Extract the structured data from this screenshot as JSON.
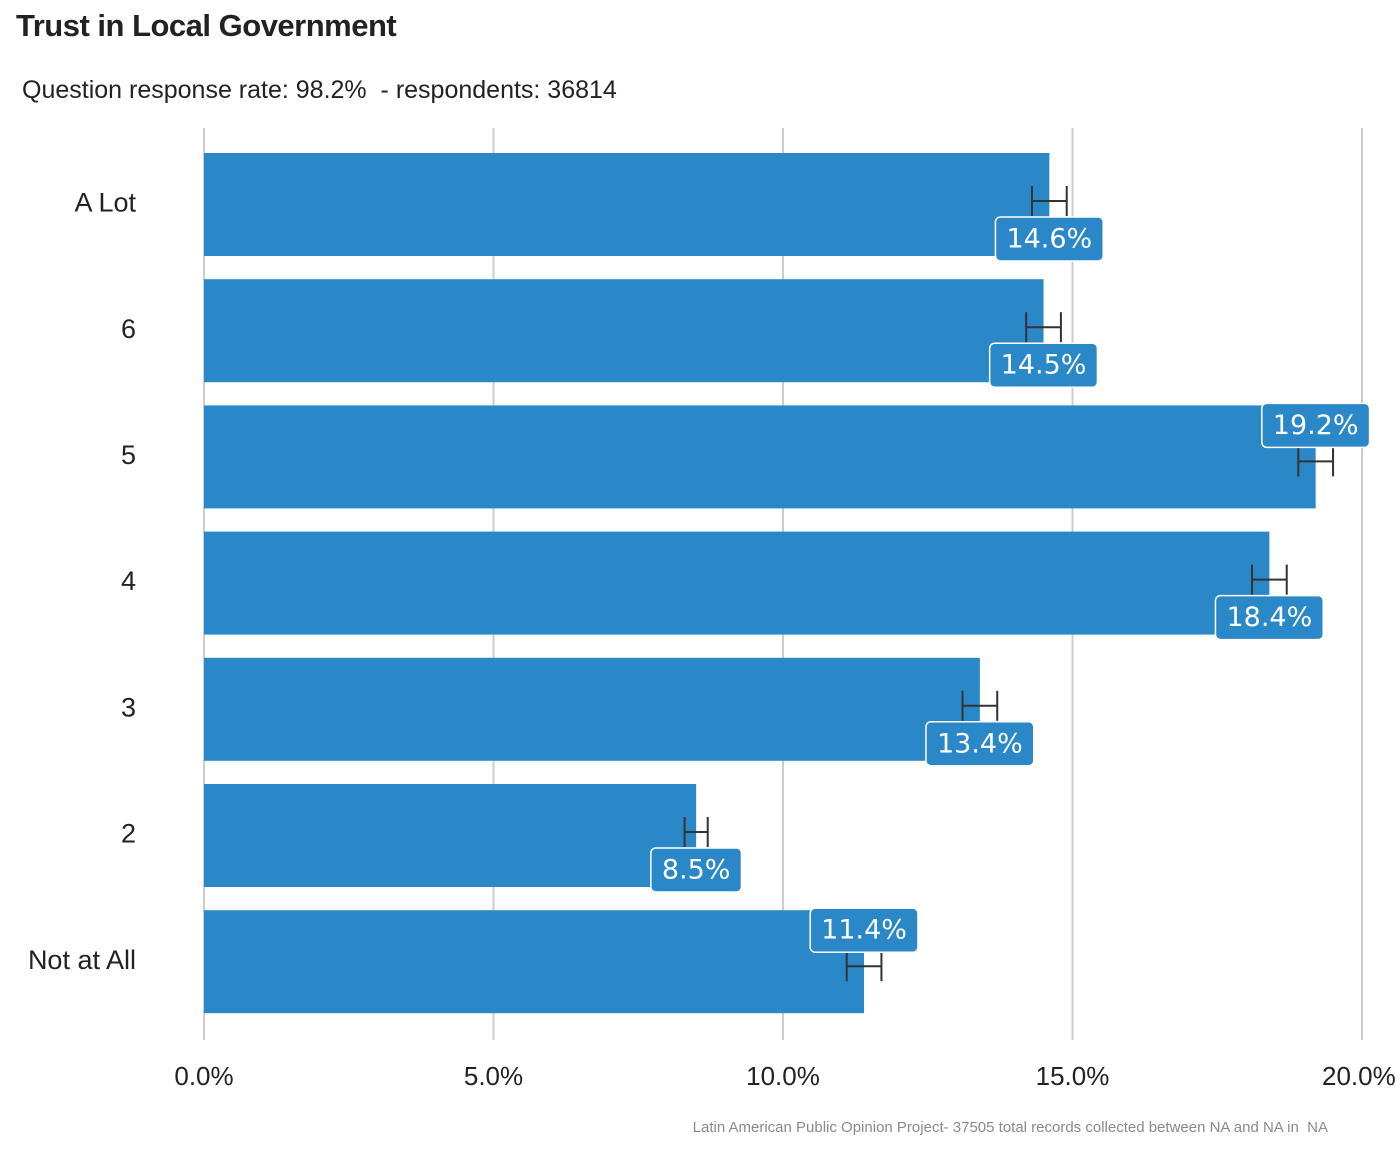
{
  "title": "Trust in Local Government",
  "subtitle": "Question response rate: 98.2%  - respondents: 36814",
  "caption": "Latin American Public Opinion Project- 37505 total records collected between NA and NA in  NA",
  "colors": {
    "bar": "#2b88c8",
    "grid": "#cccccc",
    "error_bar": "#333333",
    "label_text": "#ffffff"
  },
  "chart_data": {
    "type": "bar",
    "orientation": "horizontal",
    "categories": [
      "A Lot",
      "6",
      "5",
      "4",
      "3",
      "2",
      "Not at All"
    ],
    "values": [
      14.6,
      14.5,
      19.2,
      18.4,
      13.4,
      8.5,
      11.4
    ],
    "value_labels": [
      "14.6%",
      "14.5%",
      "19.2%",
      "18.4%",
      "13.4%",
      "8.5%",
      "11.4%"
    ],
    "error_low": [
      14.3,
      14.2,
      18.9,
      18.1,
      13.1,
      8.3,
      11.1
    ],
    "error_high": [
      14.9,
      14.8,
      19.5,
      18.7,
      13.7,
      8.7,
      11.7
    ],
    "x_ticks": [
      0,
      5,
      10,
      15,
      20
    ],
    "x_tick_labels": [
      "0.0%",
      "5.0%",
      "10.0%",
      "15.0%",
      "20.0%"
    ],
    "xlim": [
      0,
      20
    ],
    "xlabel": "",
    "ylabel": "",
    "grid": "vertical major gridlines",
    "legend": "none"
  }
}
